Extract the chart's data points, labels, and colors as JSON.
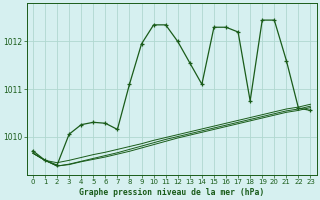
{
  "title": "Graphe pression niveau de la mer (hPa)",
  "background_color": "#d6f0f0",
  "grid_color": "#b0d8d0",
  "line_color": "#1a5c1a",
  "marker_color": "#1a5c1a",
  "xlim": [
    -0.5,
    23.5
  ],
  "ylim": [
    1009.2,
    1012.8
  ],
  "xticks": [
    0,
    1,
    2,
    3,
    4,
    5,
    6,
    7,
    8,
    9,
    10,
    11,
    12,
    13,
    14,
    15,
    16,
    17,
    18,
    19,
    20,
    21,
    22,
    23
  ],
  "yticks": [
    1010,
    1011,
    1012
  ],
  "series1": [
    1009.7,
    1009.5,
    1009.4,
    1010.05,
    1010.25,
    1010.3,
    1010.28,
    1010.15,
    1011.1,
    1011.95,
    1012.35,
    1012.35,
    1012.0,
    1011.55,
    1011.1,
    1012.3,
    1012.3,
    1012.2,
    1010.75,
    1012.45,
    1012.45,
    1011.6,
    1010.6,
    1010.55
  ],
  "series2": [
    1009.65,
    1009.5,
    1009.45,
    1009.5,
    1009.56,
    1009.62,
    1009.67,
    1009.73,
    1009.79,
    1009.85,
    1009.92,
    1009.98,
    1010.04,
    1010.1,
    1010.16,
    1010.22,
    1010.28,
    1010.34,
    1010.4,
    1010.46,
    1010.52,
    1010.58,
    1010.62,
    1010.68
  ],
  "series3": [
    1009.65,
    1009.5,
    1009.38,
    1009.42,
    1009.48,
    1009.54,
    1009.6,
    1009.66,
    1009.73,
    1009.8,
    1009.87,
    1009.94,
    1010.0,
    1010.06,
    1010.12,
    1010.18,
    1010.24,
    1010.3,
    1010.36,
    1010.42,
    1010.48,
    1010.54,
    1010.58,
    1010.64
  ],
  "series4": [
    1009.65,
    1009.5,
    1009.38,
    1009.41,
    1009.47,
    1009.52,
    1009.57,
    1009.63,
    1009.69,
    1009.76,
    1009.83,
    1009.9,
    1009.97,
    1010.03,
    1010.09,
    1010.15,
    1010.21,
    1010.27,
    1010.33,
    1010.39,
    1010.45,
    1010.51,
    1010.55,
    1010.61
  ]
}
